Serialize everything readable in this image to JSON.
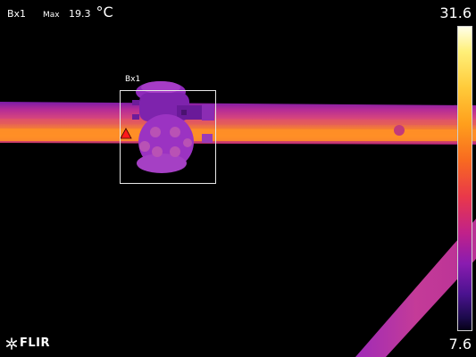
{
  "readout": {
    "measurement_label": "Bx1",
    "max_label": "Max",
    "max_value": "19.3",
    "unit": "°C"
  },
  "measurement_box": {
    "label": "Bx1"
  },
  "color_scale": {
    "max": "31.6",
    "min": "7.6",
    "palette": "iron",
    "colors": [
      "#ffffea",
      "#ffcb3a",
      "#f86a20",
      "#c0218a",
      "#4b1290",
      "#050016"
    ]
  },
  "brand": {
    "logo_text": "FLIR"
  },
  "marker": {
    "type": "hot-spot-triangle",
    "color": "#ff1a1a"
  }
}
